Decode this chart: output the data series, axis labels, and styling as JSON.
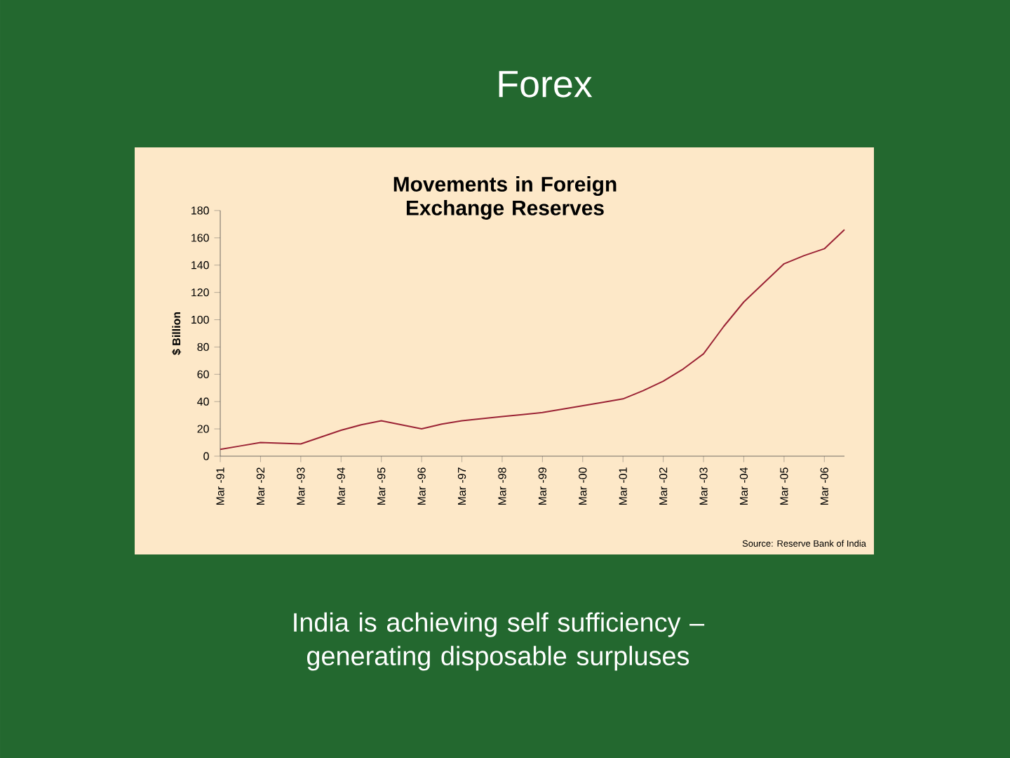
{
  "chart_data": {
    "type": "line",
    "title": "Forex",
    "subtitle": "Movements in Foreign Exchange Reserves",
    "ylabel": "$ Billion",
    "categories": [
      "Mar -91",
      null,
      "Mar -92",
      null,
      "Mar -93",
      null,
      "Mar -94",
      null,
      "Mar -95",
      null,
      "Mar -96",
      null,
      "Mar -97",
      null,
      "Mar -98",
      null,
      "Mar -99",
      null,
      "Mar -00",
      null,
      "Mar -01",
      null,
      "Mar -02",
      null,
      "Mar -03",
      null,
      "Mar -04",
      null,
      "Mar -05",
      null,
      "Mar -06",
      null
    ],
    "values": [
      5,
      7.5,
      10,
      9.5,
      9,
      14,
      19,
      23,
      26,
      23,
      20,
      23.5,
      26,
      27.5,
      29,
      30.5,
      32,
      34.5,
      37,
      39.5,
      42,
      48,
      55,
      64,
      75,
      95,
      113,
      127,
      141,
      147,
      152,
      166
    ],
    "color": "#9b2335",
    "ylim": [
      0,
      180
    ],
    "yticks": [
      0,
      20,
      40,
      60,
      80,
      100,
      120,
      140,
      160,
      180
    ],
    "annotations": [
      "Source: Reserve Bank of India",
      "India is achieving self sufficiency – generating disposable surpluses"
    ]
  }
}
